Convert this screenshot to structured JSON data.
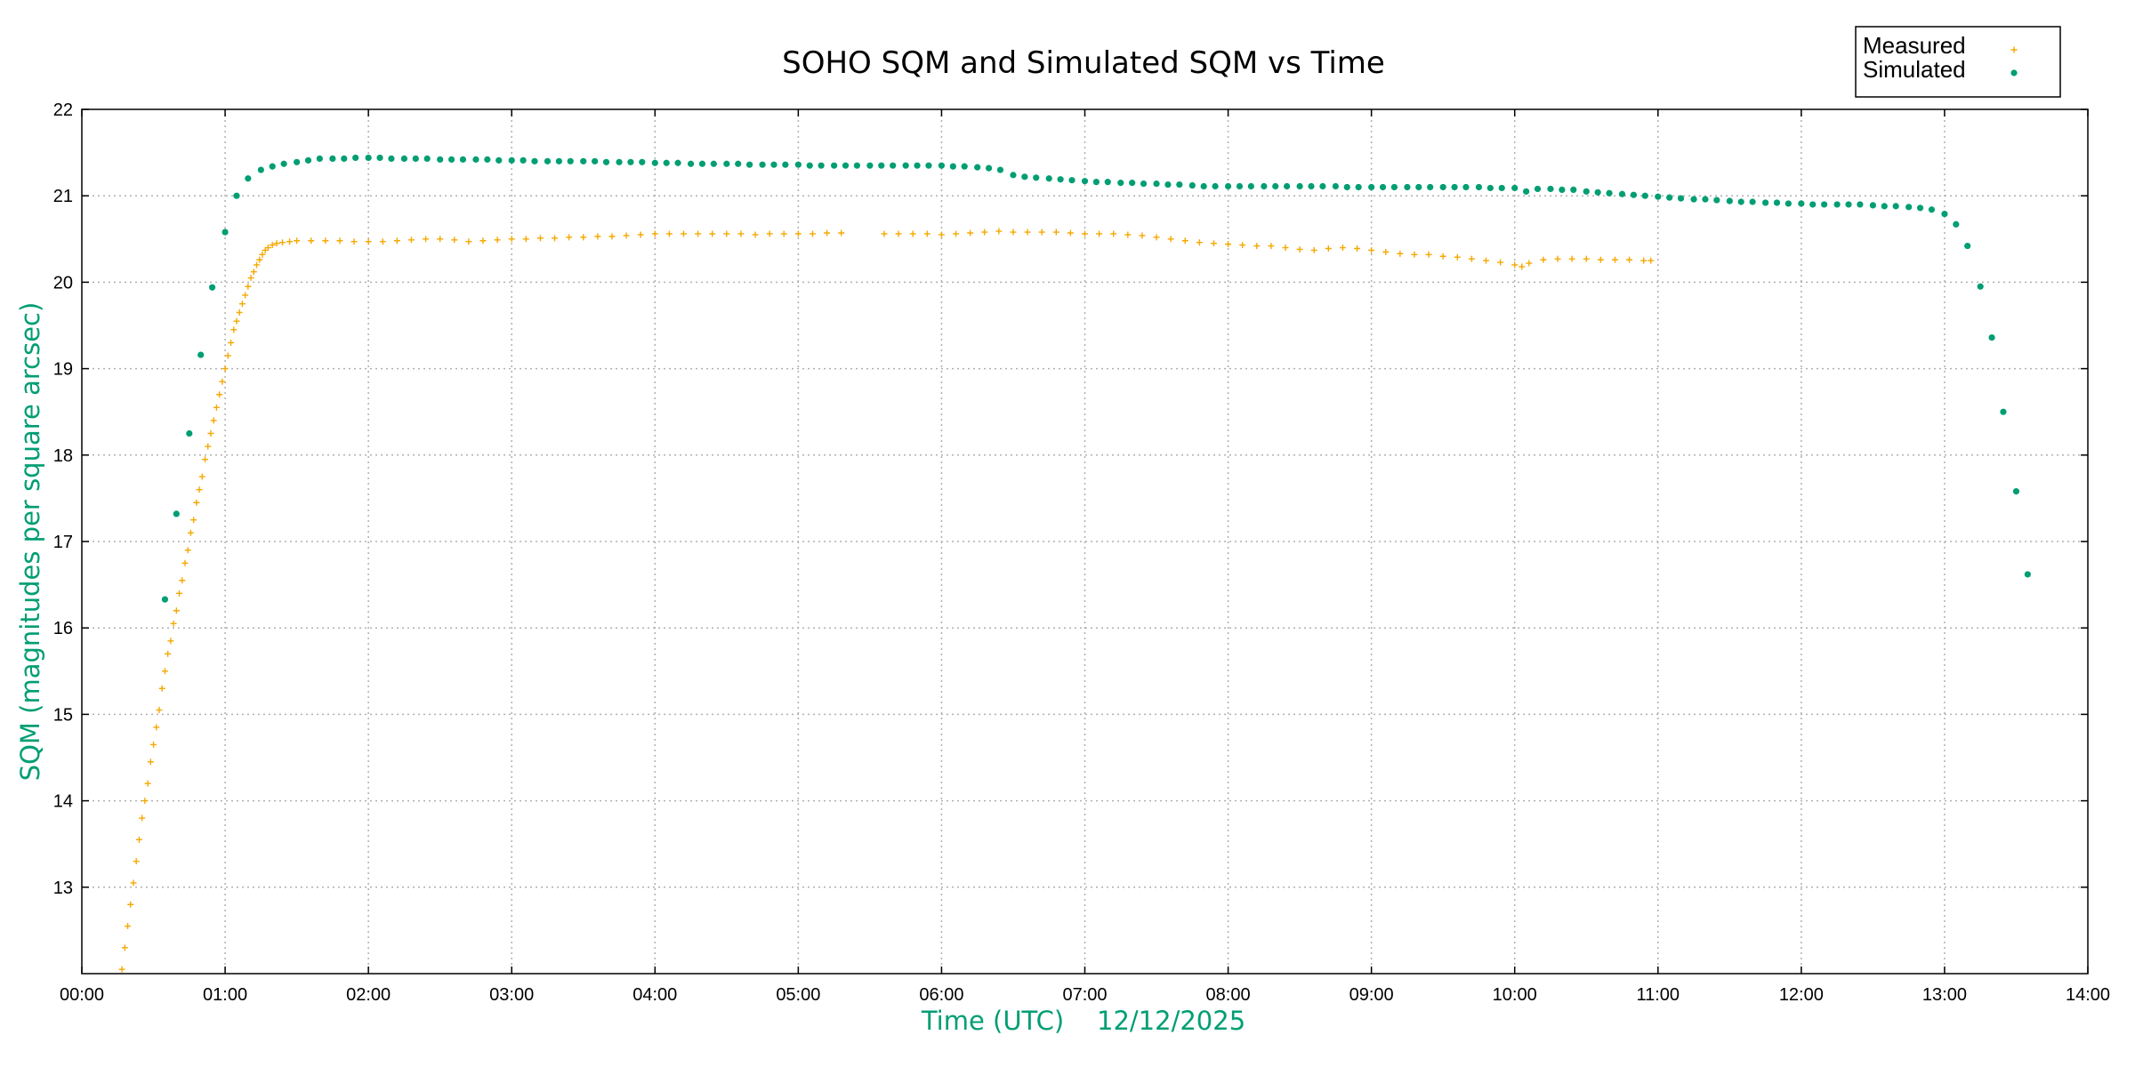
{
  "chart_data": {
    "type": "scatter",
    "title": "SOHO SQM and Simulated SQM vs Time",
    "xlabel": "Time (UTC)    12/12/2025",
    "ylabel": "SQM (magnitudes per square arcsec)",
    "xlim": [
      0,
      14
    ],
    "ylim": [
      12,
      22
    ],
    "x_ticks": [
      "00:00",
      "01:00",
      "02:00",
      "03:00",
      "04:00",
      "05:00",
      "06:00",
      "07:00",
      "08:00",
      "09:00",
      "10:00",
      "11:00",
      "12:00",
      "13:00",
      "14:00"
    ],
    "y_ticks": [
      13,
      14,
      15,
      16,
      17,
      18,
      19,
      20,
      21,
      22
    ],
    "grid": true,
    "legend_position": "top-right",
    "axis_label_color": "#009e73",
    "series": [
      {
        "name": "Measured",
        "marker": "+",
        "color": "#f5a800",
        "points": [
          [
            0.28,
            12.05
          ],
          [
            0.3,
            12.3
          ],
          [
            0.32,
            12.55
          ],
          [
            0.34,
            12.8
          ],
          [
            0.36,
            13.05
          ],
          [
            0.38,
            13.3
          ],
          [
            0.4,
            13.55
          ],
          [
            0.42,
            13.8
          ],
          [
            0.44,
            14.0
          ],
          [
            0.46,
            14.2
          ],
          [
            0.48,
            14.45
          ],
          [
            0.5,
            14.65
          ],
          [
            0.52,
            14.85
          ],
          [
            0.54,
            15.05
          ],
          [
            0.56,
            15.3
          ],
          [
            0.58,
            15.5
          ],
          [
            0.6,
            15.7
          ],
          [
            0.62,
            15.85
          ],
          [
            0.64,
            16.05
          ],
          [
            0.66,
            16.2
          ],
          [
            0.68,
            16.4
          ],
          [
            0.7,
            16.55
          ],
          [
            0.72,
            16.75
          ],
          [
            0.74,
            16.9
          ],
          [
            0.76,
            17.1
          ],
          [
            0.78,
            17.25
          ],
          [
            0.8,
            17.45
          ],
          [
            0.82,
            17.6
          ],
          [
            0.84,
            17.75
          ],
          [
            0.86,
            17.95
          ],
          [
            0.88,
            18.1
          ],
          [
            0.9,
            18.25
          ],
          [
            0.92,
            18.4
          ],
          [
            0.94,
            18.55
          ],
          [
            0.96,
            18.7
          ],
          [
            0.98,
            18.85
          ],
          [
            1.0,
            19.0
          ],
          [
            1.02,
            19.15
          ],
          [
            1.04,
            19.3
          ],
          [
            1.06,
            19.45
          ],
          [
            1.08,
            19.55
          ],
          [
            1.1,
            19.65
          ],
          [
            1.12,
            19.75
          ],
          [
            1.14,
            19.85
          ],
          [
            1.16,
            19.95
          ],
          [
            1.18,
            20.05
          ],
          [
            1.2,
            20.12
          ],
          [
            1.22,
            20.2
          ],
          [
            1.24,
            20.26
          ],
          [
            1.26,
            20.32
          ],
          [
            1.28,
            20.37
          ],
          [
            1.3,
            20.4
          ],
          [
            1.33,
            20.43
          ],
          [
            1.36,
            20.45
          ],
          [
            1.4,
            20.46
          ],
          [
            1.45,
            20.47
          ],
          [
            1.5,
            20.48
          ],
          [
            1.6,
            20.48
          ],
          [
            1.7,
            20.48
          ],
          [
            1.8,
            20.48
          ],
          [
            1.9,
            20.47
          ],
          [
            2.0,
            20.47
          ],
          [
            2.1,
            20.47
          ],
          [
            2.2,
            20.48
          ],
          [
            2.3,
            20.49
          ],
          [
            2.4,
            20.5
          ],
          [
            2.5,
            20.5
          ],
          [
            2.6,
            20.49
          ],
          [
            2.7,
            20.47
          ],
          [
            2.8,
            20.48
          ],
          [
            2.9,
            20.49
          ],
          [
            3.0,
            20.5
          ],
          [
            3.1,
            20.5
          ],
          [
            3.2,
            20.51
          ],
          [
            3.3,
            20.51
          ],
          [
            3.4,
            20.52
          ],
          [
            3.5,
            20.52
          ],
          [
            3.6,
            20.53
          ],
          [
            3.7,
            20.53
          ],
          [
            3.8,
            20.54
          ],
          [
            3.9,
            20.55
          ],
          [
            4.0,
            20.56
          ],
          [
            4.1,
            20.56
          ],
          [
            4.2,
            20.56
          ],
          [
            4.3,
            20.56
          ],
          [
            4.4,
            20.56
          ],
          [
            4.5,
            20.56
          ],
          [
            4.6,
            20.56
          ],
          [
            4.7,
            20.55
          ],
          [
            4.8,
            20.56
          ],
          [
            4.9,
            20.56
          ],
          [
            5.0,
            20.56
          ],
          [
            5.1,
            20.56
          ],
          [
            5.2,
            20.57
          ],
          [
            5.3,
            20.57
          ],
          [
            5.6,
            20.56
          ],
          [
            5.7,
            20.56
          ],
          [
            5.8,
            20.56
          ],
          [
            5.9,
            20.56
          ],
          [
            6.0,
            20.55
          ],
          [
            6.1,
            20.56
          ],
          [
            6.2,
            20.57
          ],
          [
            6.3,
            20.58
          ],
          [
            6.4,
            20.59
          ],
          [
            6.5,
            20.58
          ],
          [
            6.6,
            20.58
          ],
          [
            6.7,
            20.58
          ],
          [
            6.8,
            20.58
          ],
          [
            6.9,
            20.57
          ],
          [
            7.0,
            20.56
          ],
          [
            7.1,
            20.56
          ],
          [
            7.2,
            20.56
          ],
          [
            7.3,
            20.55
          ],
          [
            7.4,
            20.54
          ],
          [
            7.5,
            20.52
          ],
          [
            7.6,
            20.5
          ],
          [
            7.7,
            20.48
          ],
          [
            7.8,
            20.46
          ],
          [
            7.9,
            20.45
          ],
          [
            8.0,
            20.44
          ],
          [
            8.1,
            20.43
          ],
          [
            8.2,
            20.42
          ],
          [
            8.3,
            20.42
          ],
          [
            8.4,
            20.4
          ],
          [
            8.5,
            20.38
          ],
          [
            8.6,
            20.37
          ],
          [
            8.7,
            20.39
          ],
          [
            8.8,
            20.4
          ],
          [
            8.9,
            20.39
          ],
          [
            9.0,
            20.37
          ],
          [
            9.1,
            20.35
          ],
          [
            9.2,
            20.33
          ],
          [
            9.3,
            20.32
          ],
          [
            9.4,
            20.32
          ],
          [
            9.5,
            20.3
          ],
          [
            9.6,
            20.29
          ],
          [
            9.7,
            20.27
          ],
          [
            9.8,
            20.25
          ],
          [
            9.9,
            20.23
          ],
          [
            10.0,
            20.2
          ],
          [
            10.05,
            20.18
          ],
          [
            10.1,
            20.22
          ],
          [
            10.2,
            20.26
          ],
          [
            10.3,
            20.27
          ],
          [
            10.4,
            20.27
          ],
          [
            10.5,
            20.27
          ],
          [
            10.6,
            20.26
          ],
          [
            10.7,
            20.26
          ],
          [
            10.8,
            20.26
          ],
          [
            10.9,
            20.25
          ],
          [
            10.95,
            20.25
          ]
        ]
      },
      {
        "name": "Simulated",
        "marker": "dot",
        "color": "#009e73",
        "points": [
          [
            0.58,
            16.33
          ],
          [
            0.66,
            17.32
          ],
          [
            0.75,
            18.25
          ],
          [
            0.83,
            19.16
          ],
          [
            0.91,
            19.94
          ],
          [
            1.0,
            20.58
          ],
          [
            1.08,
            21.0
          ],
          [
            1.16,
            21.2
          ],
          [
            1.25,
            21.3
          ],
          [
            1.33,
            21.34
          ],
          [
            1.41,
            21.37
          ],
          [
            1.5,
            21.39
          ],
          [
            1.58,
            21.41
          ],
          [
            1.66,
            21.43
          ],
          [
            1.75,
            21.43
          ],
          [
            1.83,
            21.43
          ],
          [
            1.91,
            21.44
          ],
          [
            2.0,
            21.44
          ],
          [
            2.08,
            21.44
          ],
          [
            2.16,
            21.43
          ],
          [
            2.25,
            21.43
          ],
          [
            2.33,
            21.43
          ],
          [
            2.41,
            21.43
          ],
          [
            2.5,
            21.42
          ],
          [
            2.58,
            21.42
          ],
          [
            2.66,
            21.42
          ],
          [
            2.75,
            21.42
          ],
          [
            2.83,
            21.42
          ],
          [
            2.91,
            21.41
          ],
          [
            3.0,
            21.41
          ],
          [
            3.08,
            21.41
          ],
          [
            3.16,
            21.4
          ],
          [
            3.25,
            21.4
          ],
          [
            3.33,
            21.4
          ],
          [
            3.41,
            21.4
          ],
          [
            3.5,
            21.4
          ],
          [
            3.58,
            21.4
          ],
          [
            3.66,
            21.39
          ],
          [
            3.75,
            21.39
          ],
          [
            3.83,
            21.39
          ],
          [
            3.91,
            21.39
          ],
          [
            4.0,
            21.38
          ],
          [
            4.08,
            21.38
          ],
          [
            4.16,
            21.38
          ],
          [
            4.25,
            21.37
          ],
          [
            4.33,
            21.37
          ],
          [
            4.41,
            21.37
          ],
          [
            4.5,
            21.37
          ],
          [
            4.58,
            21.37
          ],
          [
            4.66,
            21.36
          ],
          [
            4.75,
            21.36
          ],
          [
            4.83,
            21.36
          ],
          [
            4.91,
            21.36
          ],
          [
            5.0,
            21.36
          ],
          [
            5.08,
            21.35
          ],
          [
            5.16,
            21.35
          ],
          [
            5.25,
            21.35
          ],
          [
            5.33,
            21.35
          ],
          [
            5.41,
            21.35
          ],
          [
            5.5,
            21.35
          ],
          [
            5.58,
            21.35
          ],
          [
            5.66,
            21.35
          ],
          [
            5.75,
            21.35
          ],
          [
            5.83,
            21.35
          ],
          [
            5.91,
            21.35
          ],
          [
            6.0,
            21.35
          ],
          [
            6.08,
            21.34
          ],
          [
            6.16,
            21.34
          ],
          [
            6.25,
            21.33
          ],
          [
            6.33,
            21.32
          ],
          [
            6.41,
            21.3
          ],
          [
            6.5,
            21.24
          ],
          [
            6.58,
            21.22
          ],
          [
            6.66,
            21.21
          ],
          [
            6.75,
            21.2
          ],
          [
            6.83,
            21.19
          ],
          [
            6.91,
            21.18
          ],
          [
            7.0,
            21.17
          ],
          [
            7.08,
            21.16
          ],
          [
            7.16,
            21.16
          ],
          [
            7.25,
            21.15
          ],
          [
            7.33,
            21.15
          ],
          [
            7.41,
            21.14
          ],
          [
            7.5,
            21.14
          ],
          [
            7.58,
            21.13
          ],
          [
            7.66,
            21.13
          ],
          [
            7.75,
            21.12
          ],
          [
            7.83,
            21.11
          ],
          [
            7.91,
            21.11
          ],
          [
            8.0,
            21.11
          ],
          [
            8.08,
            21.11
          ],
          [
            8.16,
            21.11
          ],
          [
            8.25,
            21.11
          ],
          [
            8.33,
            21.11
          ],
          [
            8.41,
            21.11
          ],
          [
            8.5,
            21.11
          ],
          [
            8.58,
            21.11
          ],
          [
            8.66,
            21.11
          ],
          [
            8.75,
            21.11
          ],
          [
            8.83,
            21.1
          ],
          [
            8.91,
            21.1
          ],
          [
            9.0,
            21.1
          ],
          [
            9.08,
            21.1
          ],
          [
            9.16,
            21.1
          ],
          [
            9.25,
            21.1
          ],
          [
            9.33,
            21.1
          ],
          [
            9.41,
            21.1
          ],
          [
            9.5,
            21.1
          ],
          [
            9.58,
            21.1
          ],
          [
            9.66,
            21.1
          ],
          [
            9.75,
            21.1
          ],
          [
            9.83,
            21.09
          ],
          [
            9.91,
            21.09
          ],
          [
            10.0,
            21.09
          ],
          [
            10.08,
            21.05
          ],
          [
            10.16,
            21.08
          ],
          [
            10.25,
            21.08
          ],
          [
            10.33,
            21.07
          ],
          [
            10.41,
            21.07
          ],
          [
            10.5,
            21.05
          ],
          [
            10.58,
            21.04
          ],
          [
            10.66,
            21.03
          ],
          [
            10.75,
            21.02
          ],
          [
            10.83,
            21.01
          ],
          [
            10.91,
            21.0
          ],
          [
            11.0,
            20.99
          ],
          [
            11.08,
            20.98
          ],
          [
            11.16,
            20.97
          ],
          [
            11.25,
            20.96
          ],
          [
            11.33,
            20.96
          ],
          [
            11.41,
            20.95
          ],
          [
            11.5,
            20.94
          ],
          [
            11.58,
            20.93
          ],
          [
            11.66,
            20.93
          ],
          [
            11.75,
            20.92
          ],
          [
            11.83,
            20.92
          ],
          [
            11.91,
            20.91
          ],
          [
            12.0,
            20.91
          ],
          [
            12.08,
            20.9
          ],
          [
            12.16,
            20.9
          ],
          [
            12.25,
            20.9
          ],
          [
            12.33,
            20.9
          ],
          [
            12.41,
            20.9
          ],
          [
            12.5,
            20.89
          ],
          [
            12.58,
            20.88
          ],
          [
            12.66,
            20.88
          ],
          [
            12.75,
            20.87
          ],
          [
            12.83,
            20.86
          ],
          [
            12.91,
            20.84
          ],
          [
            13.0,
            20.79
          ],
          [
            13.08,
            20.67
          ],
          [
            13.16,
            20.42
          ],
          [
            13.25,
            19.95
          ],
          [
            13.33,
            19.36
          ],
          [
            13.41,
            18.5
          ],
          [
            13.5,
            17.58
          ],
          [
            13.58,
            16.62
          ]
        ]
      }
    ]
  }
}
